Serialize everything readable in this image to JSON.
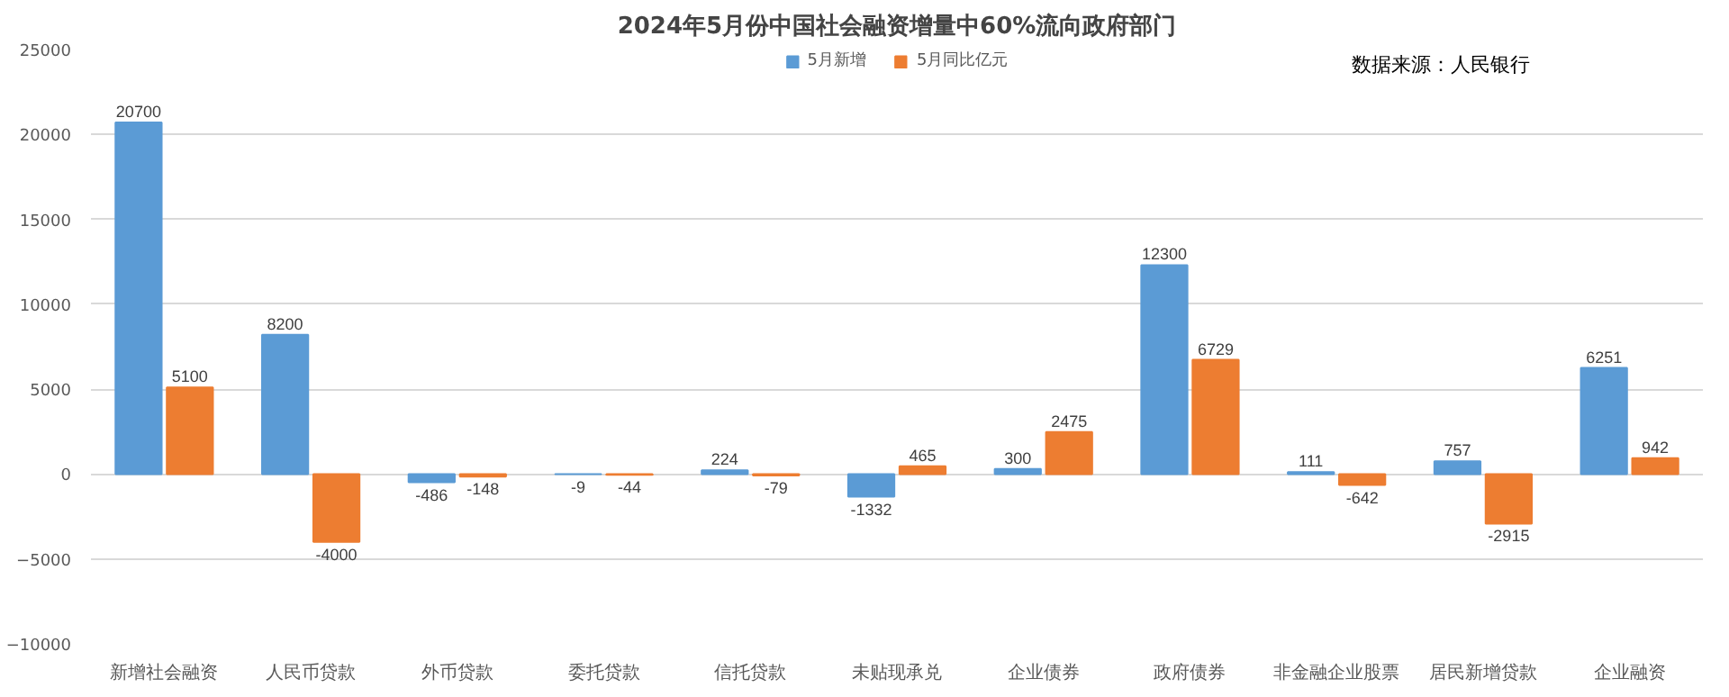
{
  "chart_data": {
    "type": "bar",
    "title": "2024年5月份中国社会融资增量中60%流向政府部门",
    "categories": [
      "新增社会融资",
      "人民币贷款",
      "外币贷款",
      "委托贷款",
      "信托贷款",
      "未贴现承兑",
      "企业债券",
      "政府债券",
      "非金融企业股票",
      "居民新增贷款",
      "企业融资"
    ],
    "series": [
      {
        "name": "5月新增",
        "color": "#5b9bd5",
        "values": [
          20700,
          8200,
          -486,
          -9,
          224,
          -1332,
          300,
          12300,
          111,
          757,
          6251
        ]
      },
      {
        "name": "5月同比亿元",
        "color": "#ed7d31",
        "values": [
          5100,
          -4000,
          -148,
          -44,
          -79,
          465,
          2475,
          6729,
          -642,
          -2915,
          942
        ]
      }
    ],
    "ylim": [
      -10000,
      25000
    ],
    "yticks": [
      -10000,
      -5000,
      0,
      5000,
      10000,
      15000,
      20000,
      25000
    ],
    "grid": "y",
    "legend": "top",
    "data_labels": true,
    "annotations": [
      "数据来源：人民银行"
    ]
  }
}
